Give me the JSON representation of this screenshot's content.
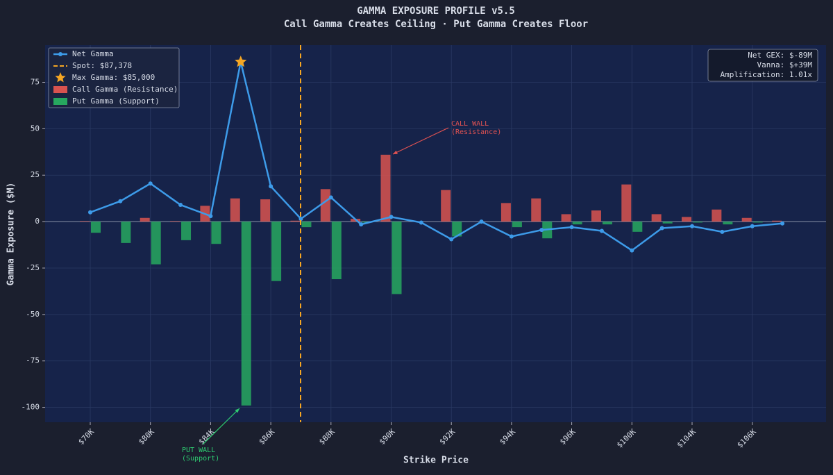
{
  "chart_data": {
    "type": "gamma-profile",
    "title": "GAMMA EXPOSURE PROFILE v5.5",
    "subtitle": "Call Gamma Creates Ceiling · Put Gamma Creates Floor",
    "x_label": "Strike Price",
    "y_label": "Gamma Exposure ($M)",
    "categories": [
      "$70K",
      null,
      "$80K",
      null,
      "$84K",
      null,
      "$86K",
      null,
      "$88K",
      null,
      "$90K",
      null,
      "$92K",
      null,
      "$94K",
      null,
      "$96K",
      null,
      "$100K",
      null,
      "$104K",
      null,
      "$106K",
      null
    ],
    "series": [
      {
        "name": "Call Gamma (Resistance)",
        "kind": "bar",
        "color": "#d9534f",
        "values": [
          0.3,
          0,
          2,
          0.3,
          8.5,
          12.5,
          12,
          0.5,
          17.5,
          1.5,
          36,
          0,
          17,
          0,
          10,
          12.5,
          4,
          6,
          20,
          4,
          2.5,
          6.5,
          2,
          0.5
        ]
      },
      {
        "name": "Put Gamma (Support)",
        "kind": "bar",
        "color": "#27a85f",
        "values": [
          -6,
          -11.5,
          -23,
          -10,
          -12,
          -99,
          -32,
          -3,
          -31,
          -0.5,
          -39,
          0,
          -8,
          0,
          -3,
          -9,
          -1.5,
          -1.5,
          -5.5,
          -1,
          -0.5,
          -1.5,
          -0.5,
          0
        ]
      },
      {
        "name": "Net Gamma",
        "kind": "line",
        "color": "#3d9be9",
        "values": [
          5,
          11,
          20.5,
          9,
          3,
          86,
          19,
          1.5,
          13,
          -1.5,
          2.5,
          -0.5,
          -9.5,
          0,
          -8,
          -4.5,
          -3,
          -5,
          -15.5,
          -3.5,
          -2.5,
          -5.5,
          -2.5,
          -1
        ]
      }
    ],
    "spot_label": "Spot: $87,378",
    "max_label": "Max Gamma: $85,000",
    "annotations": [
      {
        "lines": [
          "CALL WALL",
          "(Resistance)"
        ],
        "color": "#e05252"
      },
      {
        "lines": [
          "PUT WALL",
          "(Support)"
        ],
        "color": "#2ecc71"
      }
    ],
    "info": [
      "Net GEX: $-89M",
      "Vanna: $+39M",
      "Amplification: 1.01x"
    ],
    "ylim": [
      -108,
      95
    ],
    "yticks": [
      -100,
      -75,
      -50,
      -25,
      0,
      25,
      50,
      75
    ],
    "grid": true
  }
}
